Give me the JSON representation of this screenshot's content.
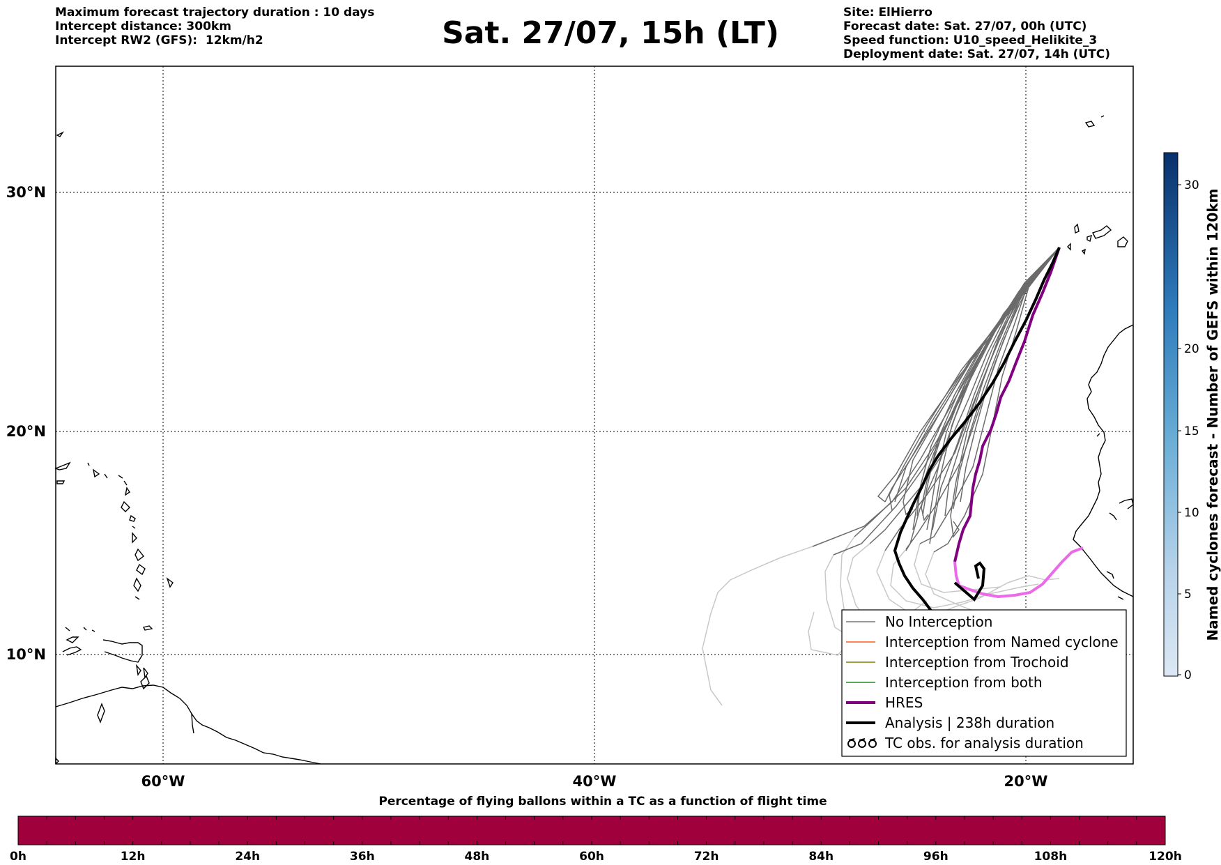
{
  "header_left": [
    "Maximum forecast trajectory duration : 10 days",
    "Intercept distance: 300km",
    "Intercept RW2 (GFS):  12km/h2"
  ],
  "title": "Sat. 27/07, 15h (LT)",
  "header_right": [
    "Site: ElHierro",
    "Forecast date: Sat. 27/07, 00h (UTC)",
    "Speed function: U10_speed_Helikite_3",
    "Deployment date: Sat. 27/07, 14h (UTC)"
  ],
  "map": {
    "lat_labels": [
      "30°N",
      "20°N",
      "10°N"
    ],
    "lon_labels": [
      "60°W",
      "40°W",
      "20°W"
    ],
    "grid": "dotted"
  },
  "legend": {
    "items": [
      {
        "label": "No Interception",
        "color": "#777777"
      },
      {
        "label": "Interception from Named cyclone",
        "color": "#ff5a1f"
      },
      {
        "label": "Interception from Trochoid",
        "color": "#808000"
      },
      {
        "label": "Interception from both",
        "color": "#228b22"
      },
      {
        "label": "HRES",
        "color": "#800080"
      },
      {
        "label": "Analysis | 238h duration",
        "color": "#000000"
      },
      {
        "label": "TC obs. for analysis duration",
        "color": "#000000"
      }
    ]
  },
  "colorbar_right": {
    "label": "Named cyclones forecast - Number of GEFS within 120km",
    "ticks": [
      "0",
      "5",
      "10",
      "15",
      "20",
      "30"
    ]
  },
  "colorbar_bottom": {
    "title": "Percentage of flying ballons within a TC as a function of flight time",
    "ticks": [
      "0h",
      "12h",
      "24h",
      "36h",
      "48h",
      "60h",
      "72h",
      "84h",
      "96h",
      "108h",
      "120h"
    ],
    "color": "#a0003c"
  }
}
